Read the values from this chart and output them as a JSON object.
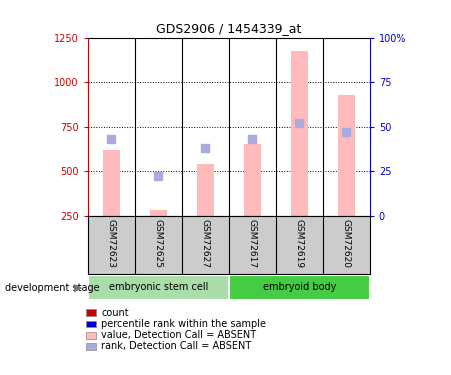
{
  "title": "GDS2906 / 1454339_at",
  "samples": [
    "GSM72623",
    "GSM72625",
    "GSM72627",
    "GSM72617",
    "GSM72619",
    "GSM72620"
  ],
  "pink_values": [
    620,
    280,
    540,
    650,
    1175,
    930
  ],
  "blue_ranks_pct": [
    43,
    22,
    38,
    43,
    52,
    47
  ],
  "ylim_left": [
    250,
    1250
  ],
  "ylim_right": [
    0,
    100
  ],
  "yticks_left": [
    250,
    500,
    750,
    1000,
    1250
  ],
  "yticks_right": [
    0,
    25,
    50,
    75,
    100
  ],
  "ytick_labels_right": [
    "0",
    "25",
    "50",
    "75",
    "100%"
  ],
  "grid_values": [
    500,
    750,
    1000
  ],
  "bar_color": "#ffbbbb",
  "square_color": "#aaaadd",
  "red_color": "#cc0000",
  "blue_color": "#0000cc",
  "gray_col": "#cccccc",
  "green_light": "#aaddaa",
  "green_dark": "#44cc44",
  "legend_colors": [
    "#cc0000",
    "#0000cc",
    "#ffbbbb",
    "#aaaadd"
  ],
  "legend_labels": [
    "count",
    "percentile rank within the sample",
    "value, Detection Call = ABSENT",
    "rank, Detection Call = ABSENT"
  ],
  "group_defs": [
    {
      "label": "embryonic stem cell",
      "start": 0,
      "end": 3,
      "color": "#aaddaa"
    },
    {
      "label": "embryoid body",
      "start": 3,
      "end": 6,
      "color": "#44cc44"
    }
  ]
}
